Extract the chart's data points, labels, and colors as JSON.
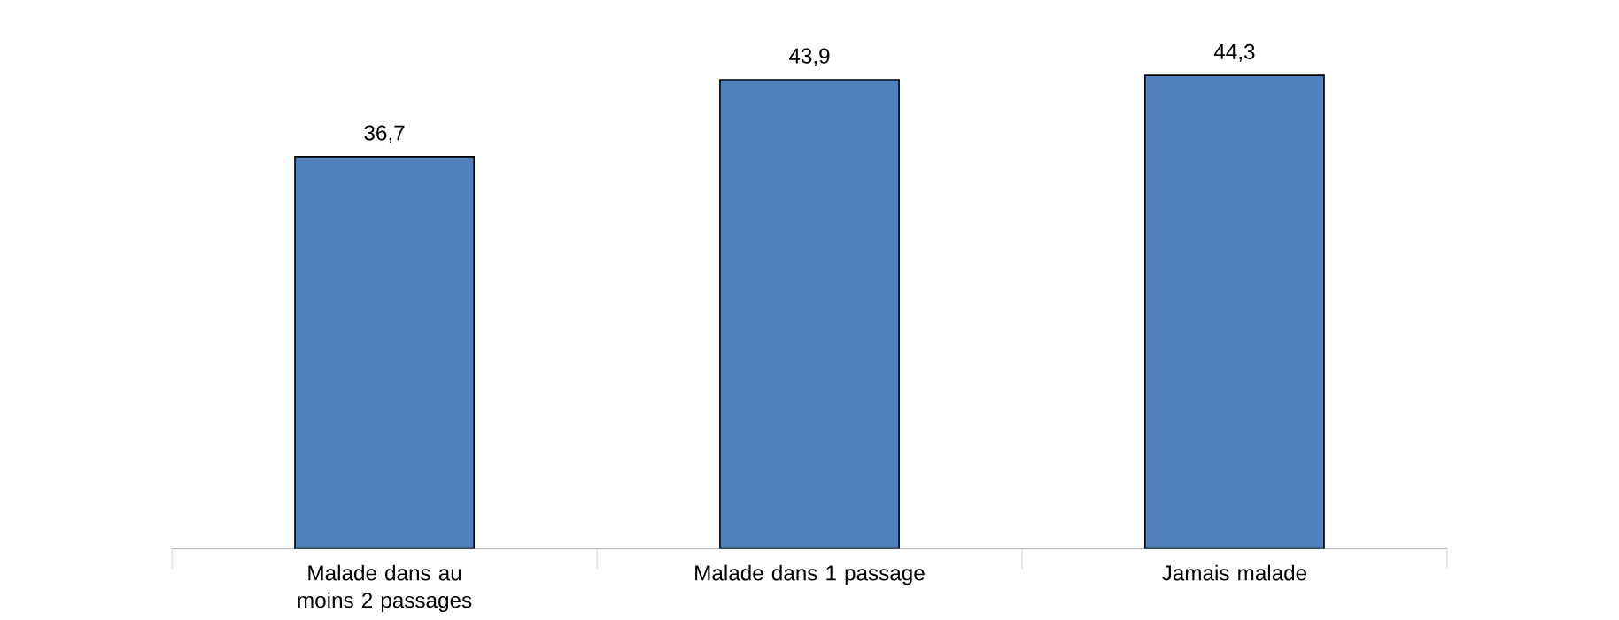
{
  "chart_data": {
    "type": "bar",
    "categories": [
      "Malade dans au moins 2 passages",
      "Malade dans 1 passage",
      "Jamais malade"
    ],
    "values": [
      36.7,
      43.9,
      44.3
    ],
    "color": "#4f81bd",
    "value_labels": [
      "36,7",
      "43,9",
      "44,3"
    ]
  }
}
